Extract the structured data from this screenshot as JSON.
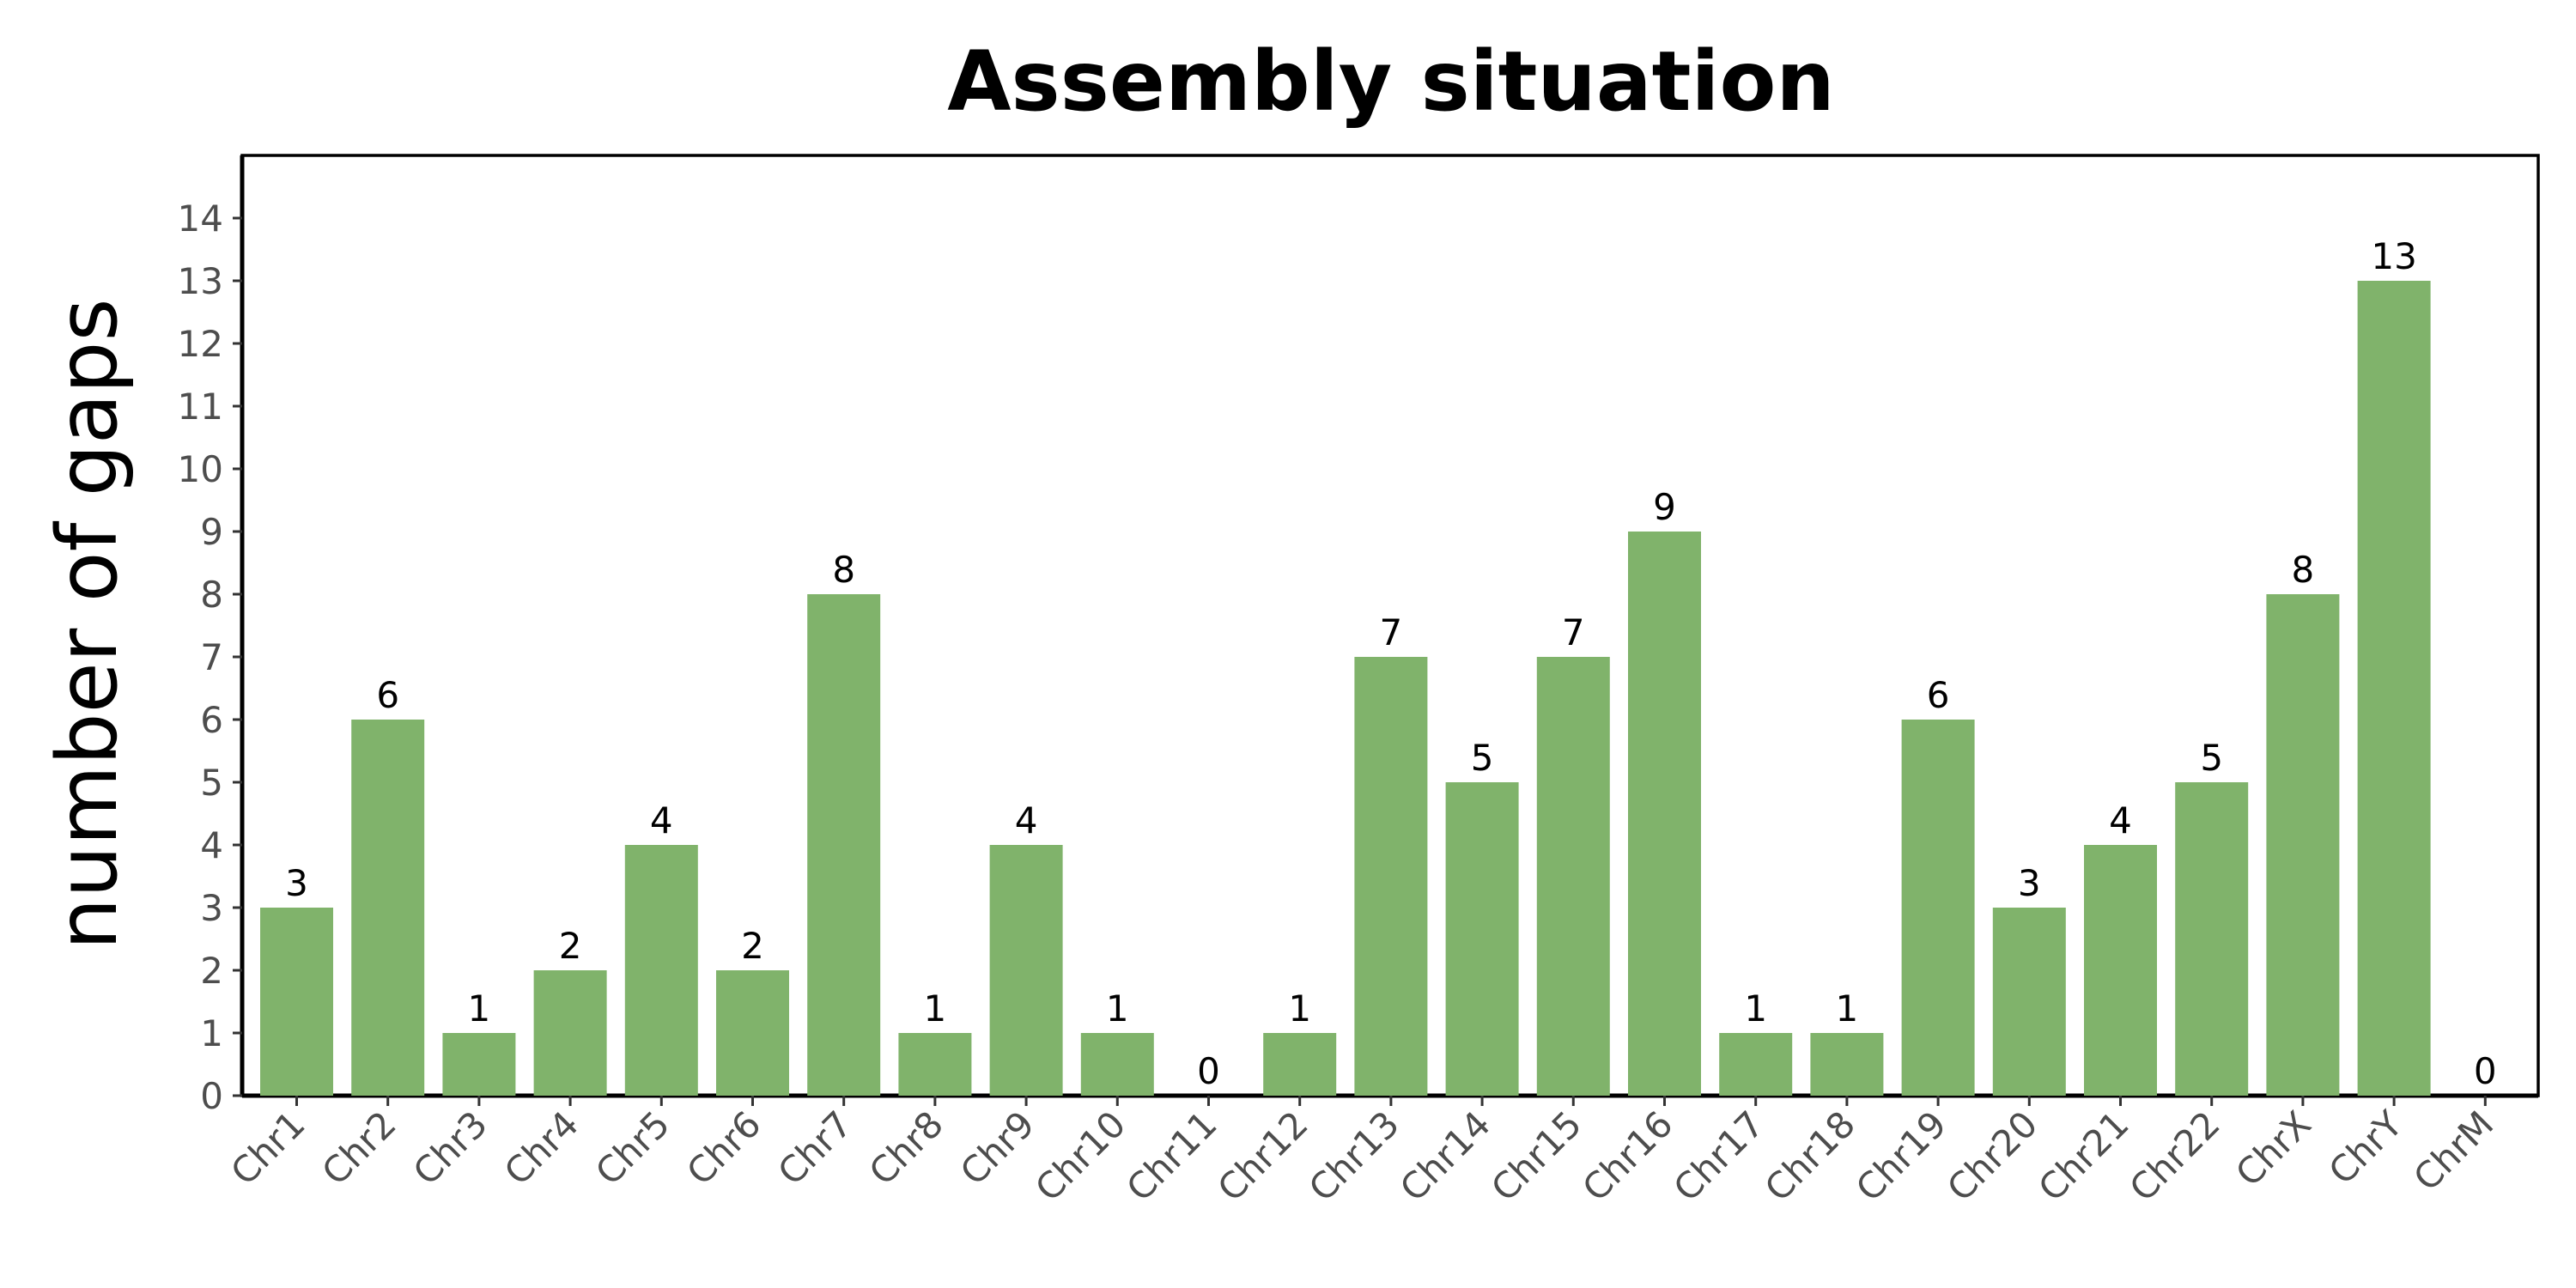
{
  "chart_data": {
    "type": "bar",
    "title": "Assembly situation",
    "xlabel": "",
    "ylabel": "number of gaps",
    "categories": [
      "Chr1",
      "Chr2",
      "Chr3",
      "Chr4",
      "Chr5",
      "Chr6",
      "Chr7",
      "Chr8",
      "Chr9",
      "Chr10",
      "Chr11",
      "Chr12",
      "Chr13",
      "Chr14",
      "Chr15",
      "Chr16",
      "Chr17",
      "Chr18",
      "Chr19",
      "Chr20",
      "Chr21",
      "Chr22",
      "ChrX",
      "ChrY",
      "ChrM"
    ],
    "values": [
      3,
      6,
      1,
      2,
      4,
      2,
      8,
      1,
      4,
      1,
      0,
      1,
      7,
      5,
      7,
      9,
      1,
      1,
      6,
      3,
      4,
      5,
      8,
      13,
      0
    ],
    "data_labels": [
      "3",
      "6",
      "1",
      "2",
      "4",
      "2",
      "8",
      "1",
      "4",
      "1",
      "0",
      "1",
      "7",
      "5",
      "7",
      "9",
      "1",
      "1",
      "6",
      "3",
      "4",
      "5",
      "8",
      "13",
      "0"
    ],
    "ylim": [
      0,
      15
    ],
    "yticks": [
      0,
      1,
      2,
      3,
      4,
      5,
      6,
      7,
      8,
      9,
      10,
      11,
      12,
      13,
      14
    ],
    "ytick_labels": [
      "0",
      "1",
      "2",
      "3",
      "4",
      "5",
      "6",
      "7",
      "8",
      "9",
      "10",
      "11",
      "12",
      "13",
      "14"
    ],
    "bar_color": "#80b36b",
    "grid": false,
    "legend": "none"
  }
}
